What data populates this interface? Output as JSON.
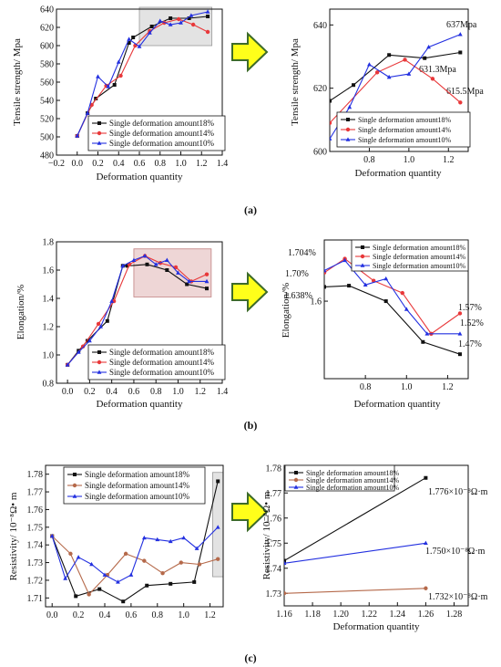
{
  "figure": {
    "panel_labels": [
      "(a)",
      "(b)",
      "(c)"
    ]
  },
  "colors": {
    "s18": "#111111",
    "s14": "#e8383a",
    "s10": "#2330e0",
    "s14_resistivity": "#b5694a",
    "highlight": "#d9d9d9",
    "arrow_fill": "#ffff1a",
    "arrow_stroke": "#3d6b2a"
  },
  "chart_data": [
    {
      "id": "a-left",
      "type": "line",
      "xlabel": "Deformation quantity",
      "ylabel": "Tensile strength/ Mpa",
      "xlim": [
        -0.2,
        1.4
      ],
      "ylim": [
        480,
        640
      ],
      "xticks": [
        "−0.2",
        "0.0",
        "0.2",
        "0.4",
        "0.6",
        "0.8",
        "1.0",
        "1.2",
        "1.4"
      ],
      "yticks": [
        "480",
        "500",
        "520",
        "540",
        "560",
        "580",
        "600",
        "620",
        "640"
      ],
      "legend_position": "bottom-right",
      "highlight": {
        "x": [
          0.6,
          1.3
        ],
        "y": [
          600,
          642
        ]
      },
      "series": [
        {
          "name": "Single deformation amount18%",
          "color_key": "s18",
          "marker": "square",
          "x": [
            0.0,
            0.1,
            0.18,
            0.36,
            0.5,
            0.54,
            0.72,
            0.9,
            1.08,
            1.26
          ],
          "y": [
            501,
            526,
            542,
            557,
            603,
            609,
            621,
            630,
            630,
            632
          ]
        },
        {
          "name": "Single deformation amount14%",
          "color_key": "s14",
          "marker": "circle",
          "x": [
            0.0,
            0.14,
            0.28,
            0.42,
            0.56,
            0.7,
            0.84,
            0.98,
            1.12,
            1.26
          ],
          "y": [
            501,
            535,
            556,
            567,
            600,
            616,
            625,
            629,
            623,
            615
          ]
        },
        {
          "name": "Single deformation amount10%",
          "color_key": "s10",
          "marker": "triangle",
          "x": [
            0.0,
            0.1,
            0.2,
            0.3,
            0.4,
            0.5,
            0.6,
            0.7,
            0.8,
            0.9,
            1.0,
            1.1,
            1.26
          ],
          "y": [
            501,
            526,
            566,
            555,
            582,
            607,
            599,
            614,
            627,
            623,
            625,
            633,
            637
          ]
        }
      ]
    },
    {
      "id": "a-right",
      "type": "line",
      "xlabel": "Deformation quantity",
      "ylabel": "Tensile strength/ Mpa",
      "xlim": [
        0.6,
        1.3
      ],
      "ylim": [
        600,
        645
      ],
      "xticks": [
        "0.8",
        "1.0",
        "1.2"
      ],
      "yticks": [
        "600",
        "620",
        "640"
      ],
      "legend_position": "bottom-right",
      "annotations": [
        "637Mpa",
        "631.3Mpa",
        "615.5Mpa"
      ],
      "series": [
        {
          "name": "Single deformation amount18%",
          "color_key": "s18",
          "marker": "square",
          "x": [
            0.6,
            0.72,
            0.9,
            1.08,
            1.26
          ],
          "y": [
            616,
            621,
            630.5,
            629.5,
            631.3
          ]
        },
        {
          "name": "Single deformation amount14%",
          "color_key": "s14",
          "marker": "circle",
          "x": [
            0.6,
            0.84,
            0.98,
            1.12,
            1.26
          ],
          "y": [
            609,
            625,
            629,
            623,
            615.5
          ]
        },
        {
          "name": "Single deformation amount10%",
          "color_key": "s10",
          "marker": "triangle",
          "x": [
            0.6,
            0.7,
            0.8,
            0.9,
            1.0,
            1.1,
            1.26
          ],
          "y": [
            604,
            614,
            627.5,
            623.5,
            624.5,
            633,
            637
          ]
        }
      ]
    },
    {
      "id": "b-left",
      "type": "line",
      "xlabel": "Deformation quantity",
      "ylabel": "Elongation/%",
      "xlim": [
        -0.1,
        1.4
      ],
      "ylim": [
        0.8,
        1.8
      ],
      "xticks": [
        "0.0",
        "0.2",
        "0.4",
        "0.6",
        "0.8",
        "1.0",
        "1.2",
        "1.4"
      ],
      "yticks": [
        "0.8",
        "1.0",
        "1.2",
        "1.4",
        "1.6",
        "1.8"
      ],
      "legend_position": "bottom-right",
      "highlight": {
        "x": [
          0.6,
          1.3
        ],
        "y": [
          1.41,
          1.75
        ]
      },
      "series": [
        {
          "name": "Single deformation amount18%",
          "color_key": "s18",
          "marker": "square",
          "x": [
            0.0,
            0.1,
            0.18,
            0.36,
            0.5,
            0.54,
            0.72,
            0.9,
            1.08,
            1.26
          ],
          "y": [
            0.93,
            1.03,
            1.1,
            1.24,
            1.63,
            1.63,
            1.64,
            1.6,
            1.5,
            1.47
          ]
        },
        {
          "name": "Single deformation amount14%",
          "color_key": "s14",
          "marker": "circle",
          "x": [
            0.0,
            0.14,
            0.28,
            0.42,
            0.56,
            0.7,
            0.84,
            0.98,
            1.12,
            1.26
          ],
          "y": [
            0.93,
            1.06,
            1.22,
            1.38,
            1.64,
            1.7,
            1.65,
            1.62,
            1.52,
            1.57
          ]
        },
        {
          "name": "Single deformation amount10%",
          "color_key": "s10",
          "marker": "triangle",
          "x": [
            0.0,
            0.1,
            0.2,
            0.3,
            0.4,
            0.5,
            0.6,
            0.7,
            0.8,
            0.9,
            1.0,
            1.1,
            1.26
          ],
          "y": [
            0.93,
            1.02,
            1.1,
            1.2,
            1.38,
            1.63,
            1.67,
            1.7,
            1.64,
            1.67,
            1.58,
            1.52,
            1.52
          ]
        }
      ]
    },
    {
      "id": "b-right",
      "type": "line",
      "xlabel": "Deformation quantity",
      "ylabel": "Elongation/%",
      "xlim": [
        0.6,
        1.3
      ],
      "ylim": [
        1.41,
        1.75
      ],
      "xticks": [
        "0.8",
        "1.0",
        "1.2"
      ],
      "yticks": [
        "1.6"
      ],
      "legend_position": "top-right",
      "annotations": [
        "1.704%",
        "1.70%",
        "1.638%",
        "1.57%",
        "1.52%",
        "1.47%"
      ],
      "series": [
        {
          "name": "Single deformation amount18%",
          "color_key": "s18",
          "marker": "square",
          "x": [
            0.6,
            0.72,
            0.9,
            1.08,
            1.26
          ],
          "y": [
            1.635,
            1.638,
            1.6,
            1.5,
            1.47
          ]
        },
        {
          "name": "Single deformation amount14%",
          "color_key": "s14",
          "marker": "circle",
          "x": [
            0.6,
            0.7,
            0.84,
            0.98,
            1.12,
            1.26
          ],
          "y": [
            1.67,
            1.704,
            1.65,
            1.62,
            1.52,
            1.57
          ]
        },
        {
          "name": "Single deformation amount10%",
          "color_key": "s10",
          "marker": "triangle",
          "x": [
            0.6,
            0.7,
            0.8,
            0.9,
            1.0,
            1.1,
            1.26
          ],
          "y": [
            1.675,
            1.7,
            1.64,
            1.655,
            1.58,
            1.52,
            1.52
          ]
        }
      ]
    },
    {
      "id": "c-left",
      "type": "line",
      "xlabel": "",
      "ylabel": "Resistivity/  10⁻⁸Ω• m",
      "xlim": [
        -0.05,
        1.3
      ],
      "ylim": [
        1.705,
        1.785
      ],
      "xticks": [
        "0.0",
        "0.2",
        "0.4",
        "0.6",
        "0.8",
        "1.0",
        "1.2"
      ],
      "yticks": [
        "1.71",
        "1.72",
        "1.73",
        "1.74",
        "1.75",
        "1.76",
        "1.77",
        "1.78"
      ],
      "legend_position": "top-right",
      "highlight": {
        "x": [
          1.22,
          1.3
        ],
        "y": [
          1.722,
          1.781
        ]
      },
      "series": [
        {
          "name": "Single deformation amount18%",
          "color_key": "s18",
          "marker": "square",
          "x": [
            0.0,
            0.18,
            0.36,
            0.54,
            0.72,
            0.9,
            1.08,
            1.26
          ],
          "y": [
            1.745,
            1.711,
            1.715,
            1.708,
            1.717,
            1.718,
            1.719,
            1.776
          ]
        },
        {
          "name": "Single deformation amount14%",
          "color_key": "s14_resistivity",
          "marker": "circle",
          "x": [
            0.0,
            0.14,
            0.28,
            0.42,
            0.56,
            0.7,
            0.84,
            0.98,
            1.12,
            1.26
          ],
          "y": [
            1.745,
            1.735,
            1.712,
            1.723,
            1.735,
            1.731,
            1.724,
            1.73,
            1.729,
            1.732
          ]
        },
        {
          "name": "Single deformation amount10%",
          "color_key": "s10",
          "marker": "triangle",
          "x": [
            0.0,
            0.1,
            0.2,
            0.3,
            0.4,
            0.5,
            0.6,
            0.7,
            0.8,
            0.9,
            1.0,
            1.1,
            1.26
          ],
          "y": [
            1.745,
            1.721,
            1.733,
            1.729,
            1.723,
            1.719,
            1.723,
            1.744,
            1.743,
            1.742,
            1.744,
            1.738,
            1.75
          ]
        }
      ]
    },
    {
      "id": "c-right",
      "type": "line",
      "xlabel": "Deformation quantity",
      "ylabel": "Resistivity/  10⁻⁸Ω• m",
      "xlim": [
        1.16,
        1.29
      ],
      "ylim": [
        1.725,
        1.781
      ],
      "xticks": [
        "1.16",
        "1.18",
        "1.20",
        "1.22",
        "1.24",
        "1.26",
        "1.28"
      ],
      "yticks": [
        "1.73",
        "1.74",
        "1.75",
        "1.76",
        "1.77",
        "1.78"
      ],
      "legend_position": "top-left",
      "annotations": [
        "1.776×10⁻⁸Ω·m",
        "1.750×10⁻⁸Ω·m",
        "1.732×10⁻⁸Ω·m"
      ],
      "series": [
        {
          "name": "Single deformation amount18%",
          "color_key": "s18",
          "marker": "square",
          "x": [
            1.16,
            1.26
          ],
          "y": [
            1.743,
            1.776
          ]
        },
        {
          "name": "Single deformation amount14%",
          "color_key": "s14_resistivity",
          "marker": "circle",
          "x": [
            1.16,
            1.26
          ],
          "y": [
            1.73,
            1.732
          ]
        },
        {
          "name": "Single deformation amount10%",
          "color_key": "s10",
          "marker": "triangle",
          "x": [
            1.16,
            1.26
          ],
          "y": [
            1.742,
            1.75
          ]
        }
      ]
    }
  ]
}
